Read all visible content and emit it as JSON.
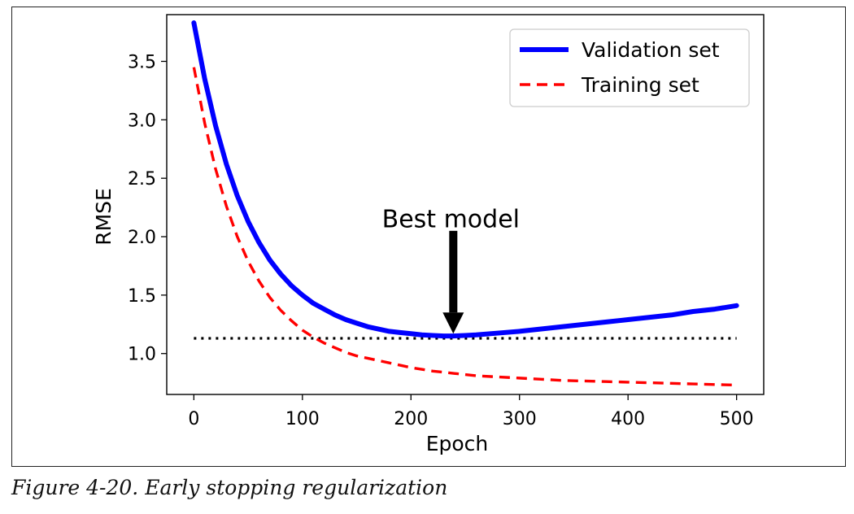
{
  "caption": "Figure 4-20. Early stopping regularization",
  "colors": {
    "validation": "#0000ff",
    "training": "#ff0000",
    "baseline": "#000000"
  },
  "chart_data": {
    "type": "line",
    "title": "",
    "xlabel": "Epoch",
    "ylabel": "RMSE",
    "xlim": [
      -25,
      525
    ],
    "ylim": [
      0.65,
      3.9
    ],
    "x_ticks": [
      0,
      100,
      200,
      300,
      400,
      500
    ],
    "y_ticks": [
      1.0,
      1.5,
      2.0,
      2.5,
      3.0,
      3.5
    ],
    "x_tick_labels": [
      "0",
      "100",
      "200",
      "300",
      "400",
      "500"
    ],
    "y_tick_labels": [
      "1.0",
      "1.5",
      "2.0",
      "2.5",
      "3.0",
      "3.5"
    ],
    "grid": false,
    "legend_position": "top-right",
    "series": [
      {
        "name": "Validation set",
        "style": "solid",
        "x": [
          0,
          10,
          20,
          30,
          40,
          50,
          60,
          70,
          80,
          90,
          100,
          110,
          120,
          130,
          140,
          150,
          160,
          170,
          180,
          190,
          200,
          210,
          220,
          230,
          239,
          250,
          260,
          280,
          300,
          320,
          340,
          360,
          380,
          400,
          420,
          440,
          460,
          480,
          500
        ],
        "values": [
          3.83,
          3.35,
          2.95,
          2.62,
          2.35,
          2.13,
          1.95,
          1.8,
          1.68,
          1.58,
          1.5,
          1.43,
          1.38,
          1.33,
          1.29,
          1.26,
          1.23,
          1.21,
          1.19,
          1.18,
          1.17,
          1.16,
          1.155,
          1.15,
          1.15,
          1.155,
          1.16,
          1.175,
          1.19,
          1.21,
          1.23,
          1.25,
          1.27,
          1.29,
          1.31,
          1.33,
          1.36,
          1.38,
          1.41
        ]
      },
      {
        "name": "Training set",
        "style": "dashed",
        "x": [
          0,
          10,
          20,
          30,
          40,
          50,
          60,
          70,
          80,
          90,
          100,
          110,
          120,
          130,
          140,
          150,
          160,
          170,
          180,
          190,
          200,
          220,
          240,
          260,
          280,
          300,
          320,
          340,
          360,
          380,
          400,
          420,
          440,
          460,
          480,
          500
        ],
        "values": [
          3.45,
          2.97,
          2.58,
          2.26,
          2.0,
          1.79,
          1.62,
          1.48,
          1.37,
          1.28,
          1.2,
          1.14,
          1.09,
          1.05,
          1.01,
          0.98,
          0.96,
          0.94,
          0.92,
          0.9,
          0.88,
          0.85,
          0.83,
          0.81,
          0.8,
          0.79,
          0.78,
          0.77,
          0.765,
          0.76,
          0.755,
          0.75,
          0.745,
          0.74,
          0.735,
          0.73
        ]
      }
    ],
    "baseline": {
      "style": "dotted",
      "y": 1.13,
      "x_start": 0,
      "x_end": 500
    },
    "annotation": {
      "text": "Best model",
      "arrow_x": 239,
      "arrow_tip_y": 1.17,
      "arrow_tail_y": 2.05,
      "text_x": 239,
      "text_y": 2.2
    }
  }
}
